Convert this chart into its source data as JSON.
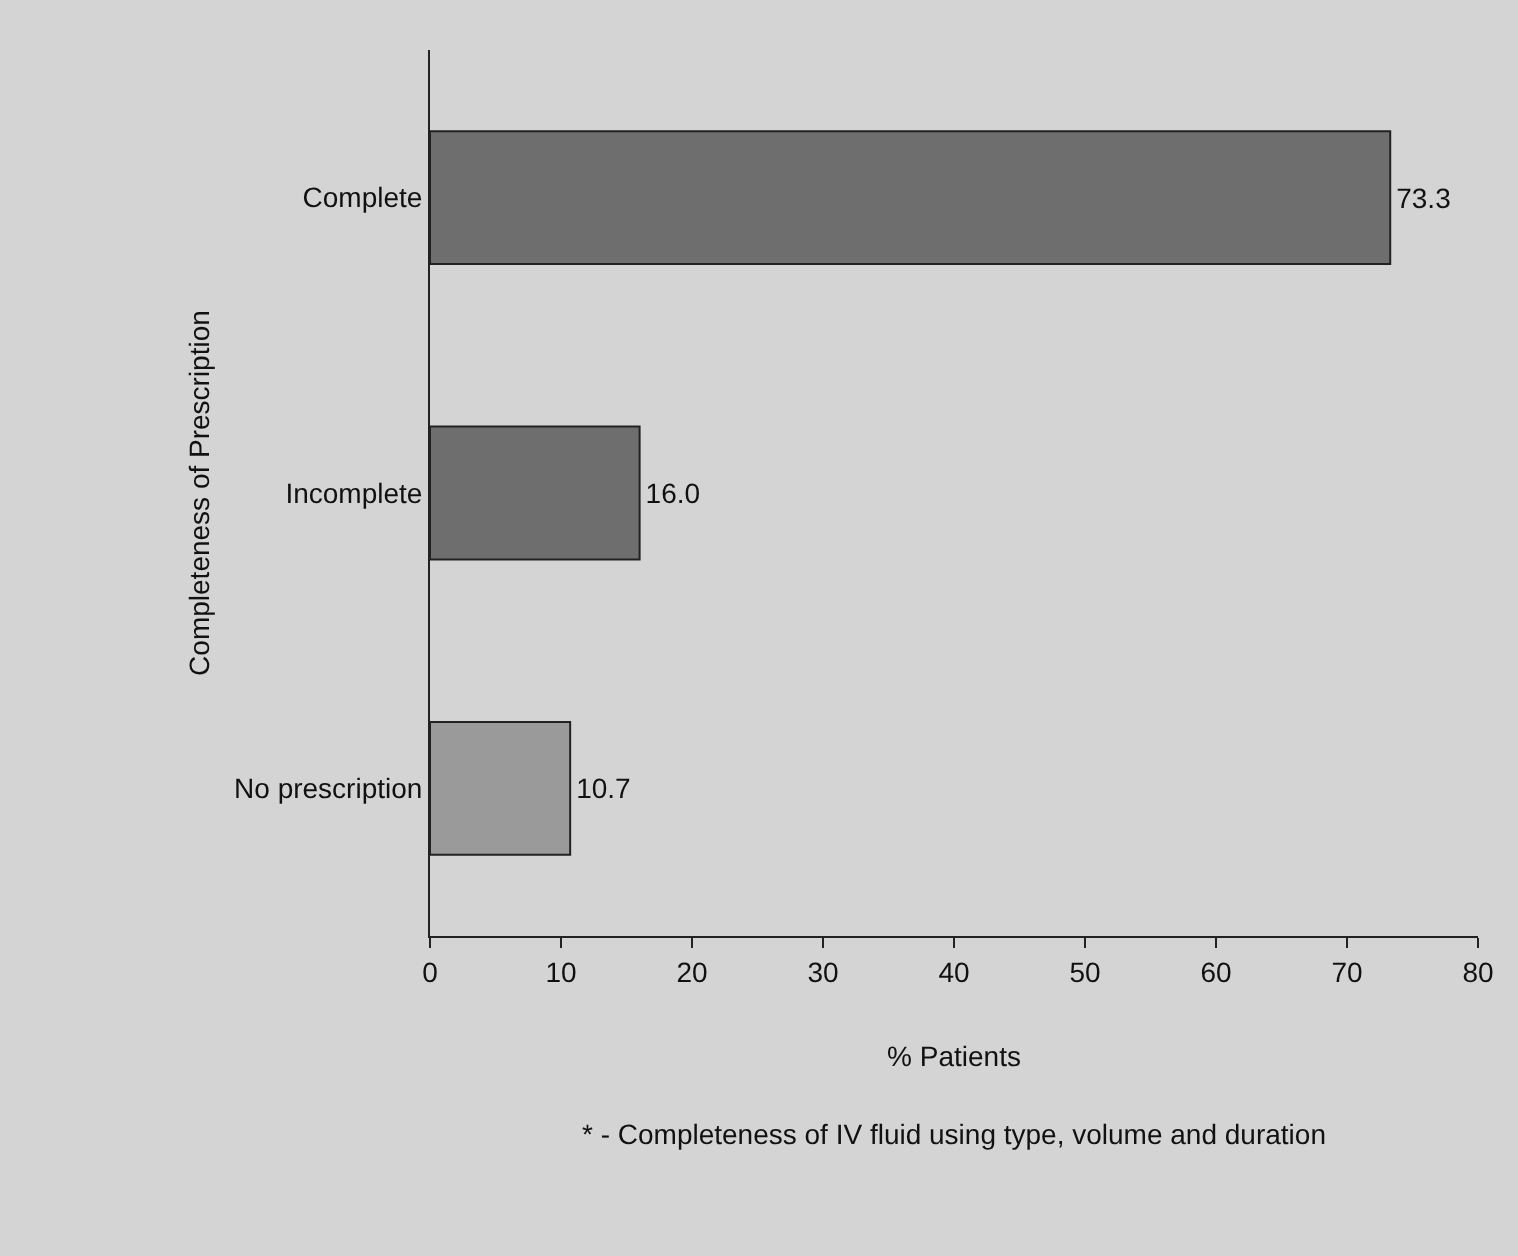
{
  "chart_data": {
    "type": "bar",
    "orientation": "horizontal",
    "categories": [
      "Complete",
      "Incomplete",
      "No prescription"
    ],
    "values": [
      73.3,
      16.0,
      10.7
    ],
    "value_labels": [
      "73.3",
      "16.0",
      "10.7"
    ],
    "colors": [
      "#6e6e6e",
      "#6e6e6e",
      "#9a9a9a"
    ],
    "xlim": [
      0,
      80
    ],
    "xticks": [
      0,
      10,
      20,
      30,
      40,
      50,
      60,
      70,
      80
    ],
    "xlabel": "% Patients",
    "ylabel": "Completeness of Prescription",
    "annotations": [
      "* - Completeness of IV fluid using type, volume and duration"
    ]
  }
}
